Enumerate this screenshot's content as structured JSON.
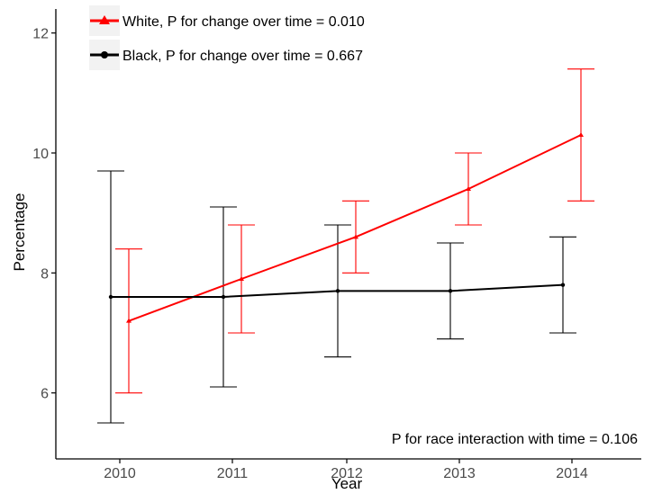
{
  "chart_data": {
    "type": "line",
    "xlabel": "Year",
    "ylabel": "Percentage",
    "x": [
      2010,
      2011,
      2012,
      2013,
      2014
    ],
    "x_tick_labels": [
      "2010",
      "2011",
      "2012",
      "2013",
      "2014"
    ],
    "y_ticks": [
      6,
      8,
      10,
      12
    ],
    "y_tick_labels": [
      "6",
      "8",
      "10",
      "12"
    ],
    "ylim": [
      4.9,
      12.4
    ],
    "grid": false,
    "legend_position": "top-left",
    "series": [
      {
        "name": "White, P for change over time = 0.010",
        "color": "#ff0000",
        "marker": "triangle",
        "values": [
          7.2,
          7.9,
          8.6,
          9.4,
          10.3
        ],
        "lower": [
          6.0,
          7.0,
          8.0,
          8.8,
          9.2
        ],
        "upper": [
          8.4,
          8.8,
          9.2,
          10.0,
          11.4
        ]
      },
      {
        "name": "Black, P for change over time = 0.667",
        "color": "#000000",
        "marker": "circle",
        "values": [
          7.6,
          7.6,
          7.7,
          7.7,
          7.8
        ],
        "lower": [
          5.5,
          6.1,
          6.6,
          6.9,
          7.0
        ],
        "upper": [
          9.7,
          9.1,
          8.8,
          8.5,
          8.6
        ]
      }
    ],
    "annotation": "P for race interaction with time = 0.106"
  }
}
